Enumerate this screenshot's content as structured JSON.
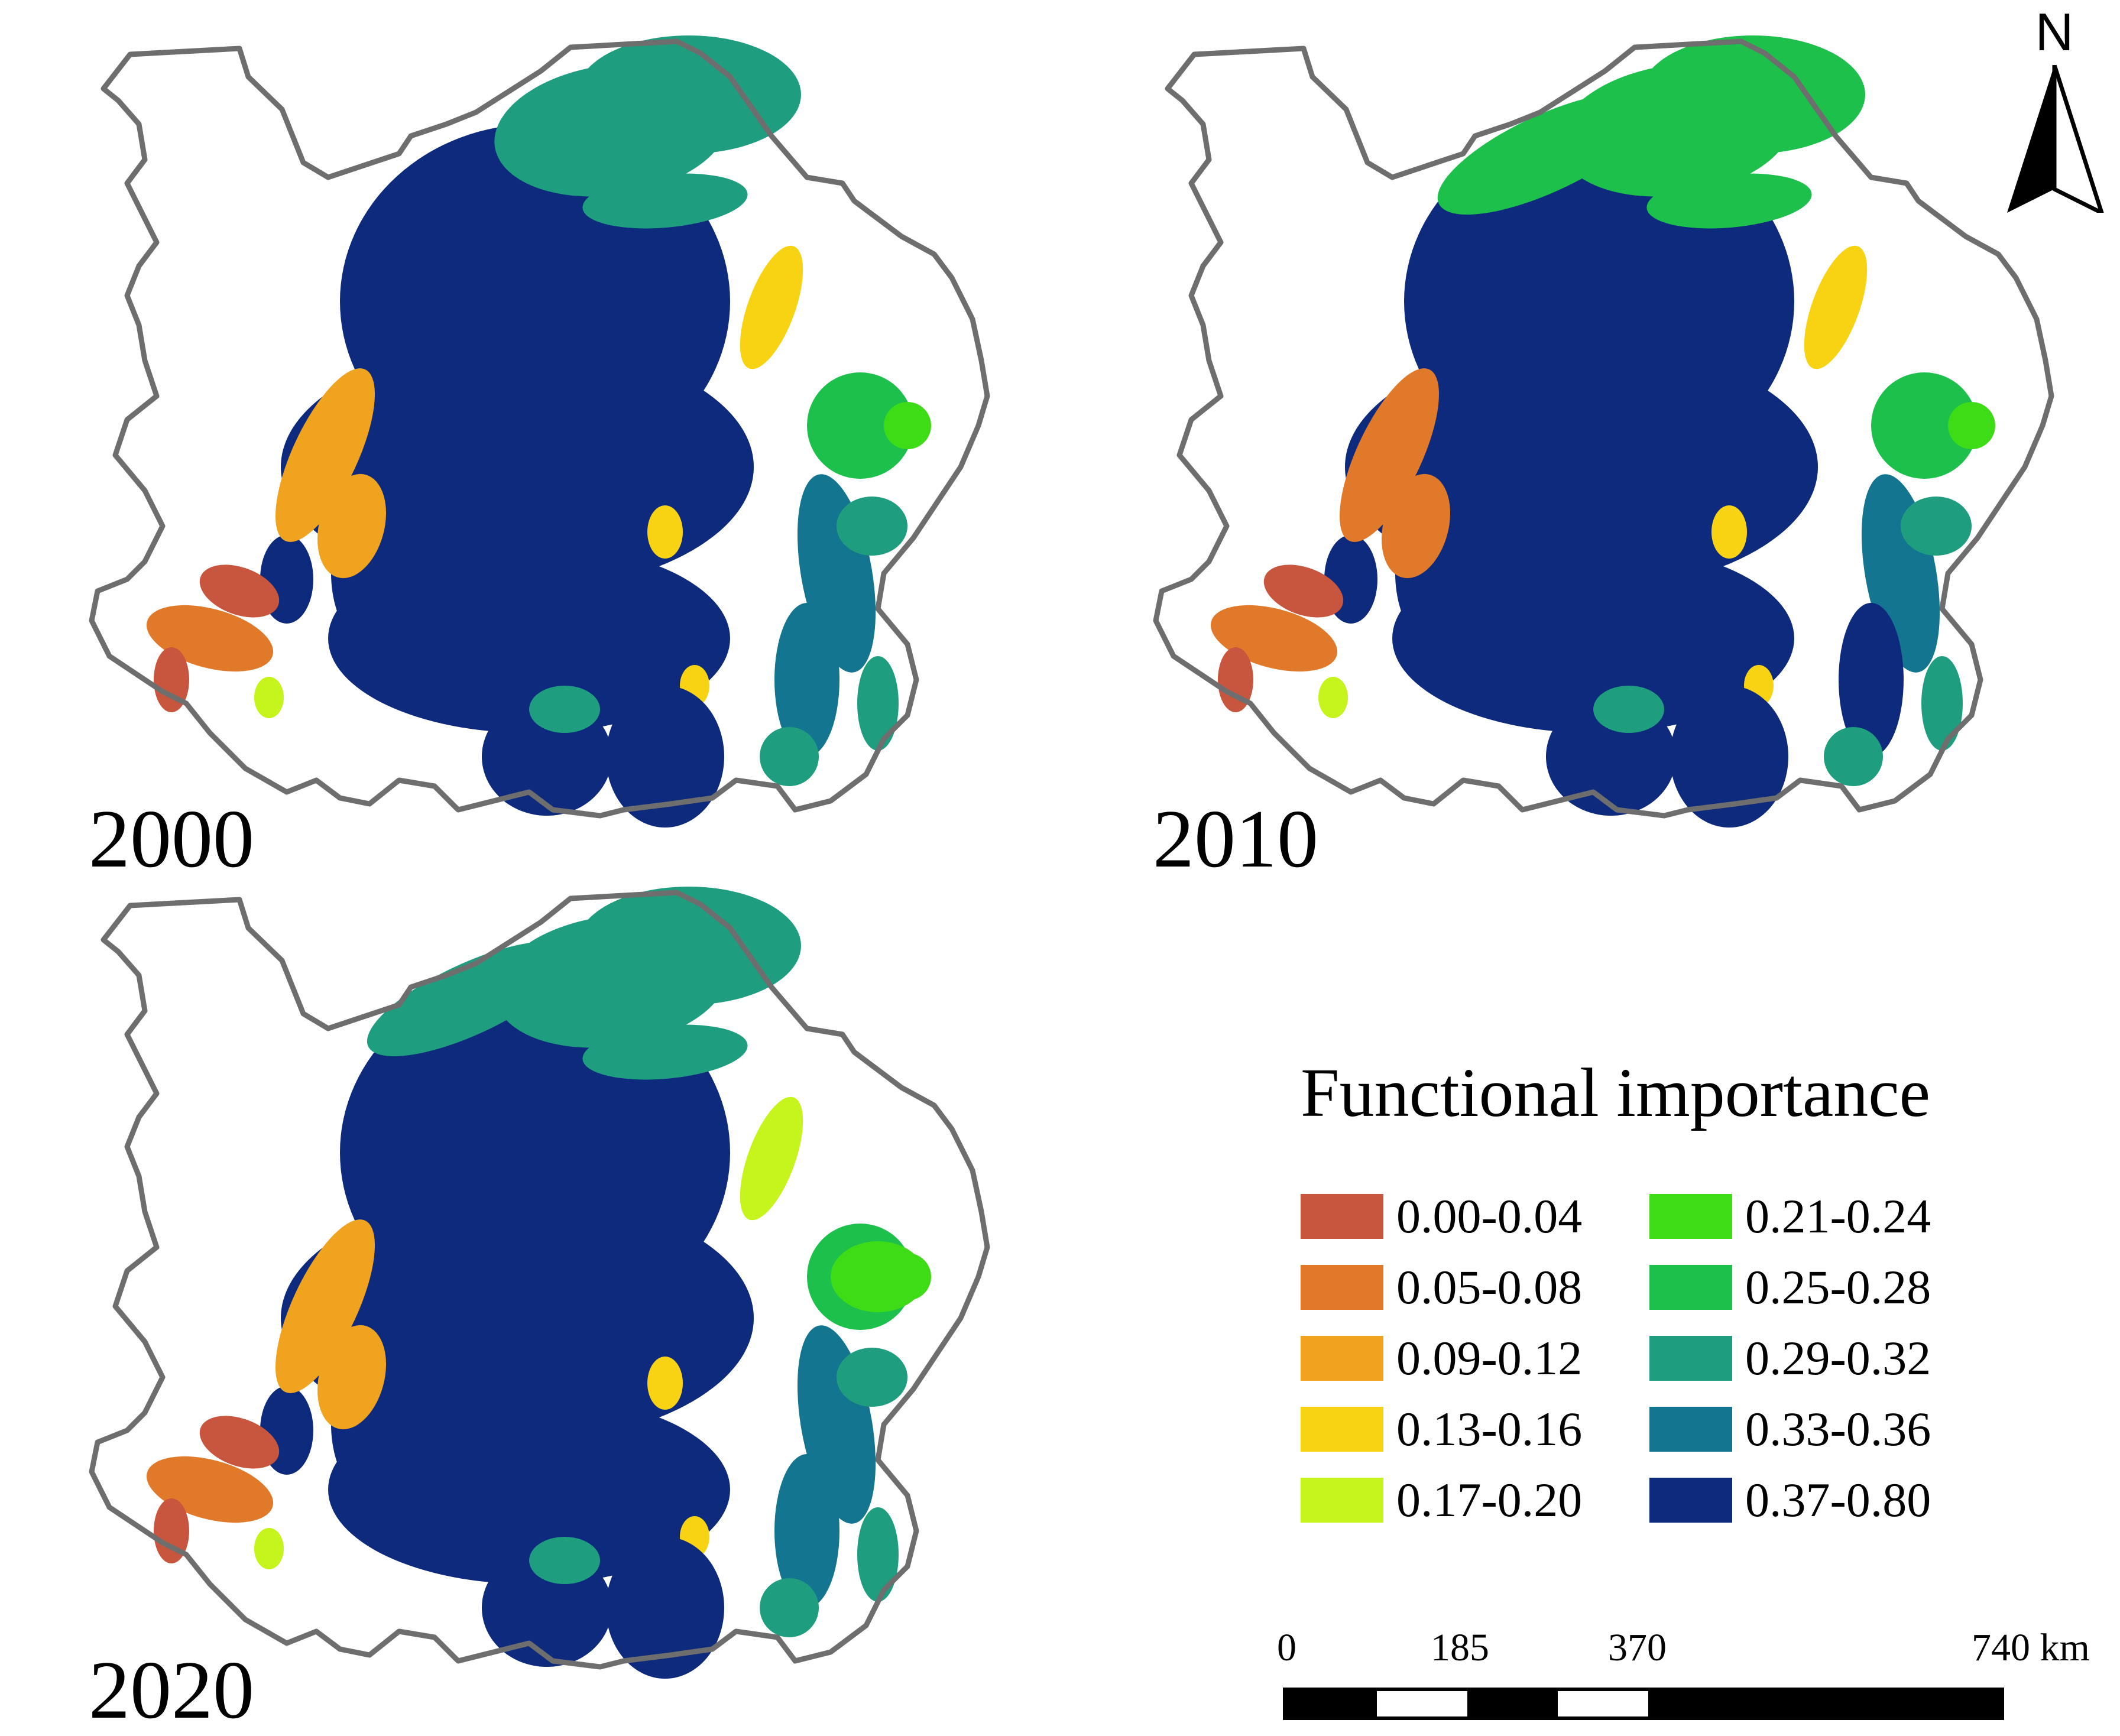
{
  "panels": [
    {
      "year": "2000"
    },
    {
      "year": "2010"
    },
    {
      "year": "2020"
    }
  ],
  "north": {
    "label": "N"
  },
  "legend": {
    "title": "Functional importance",
    "items": [
      {
        "label": "0.00-0.04",
        "color": "#c8553d"
      },
      {
        "label": "0.05-0.08",
        "color": "#e07a2a"
      },
      {
        "label": "0.09-0.12",
        "color": "#f0a31e"
      },
      {
        "label": "0.13-0.16",
        "color": "#f7d313"
      },
      {
        "label": "0.17-0.20",
        "color": "#c6f51d"
      },
      {
        "label": "0.21-0.24",
        "color": "#3ddc17"
      },
      {
        "label": "0.25-0.28",
        "color": "#1cc04b"
      },
      {
        "label": "0.29-0.32",
        "color": "#1e9e7f"
      },
      {
        "label": "0.33-0.36",
        "color": "#137590"
      },
      {
        "label": "0.37-0.80",
        "color": "#0e2a7d"
      }
    ]
  },
  "scale": {
    "ticks": [
      "0",
      "185",
      "370",
      "740 km"
    ]
  }
}
